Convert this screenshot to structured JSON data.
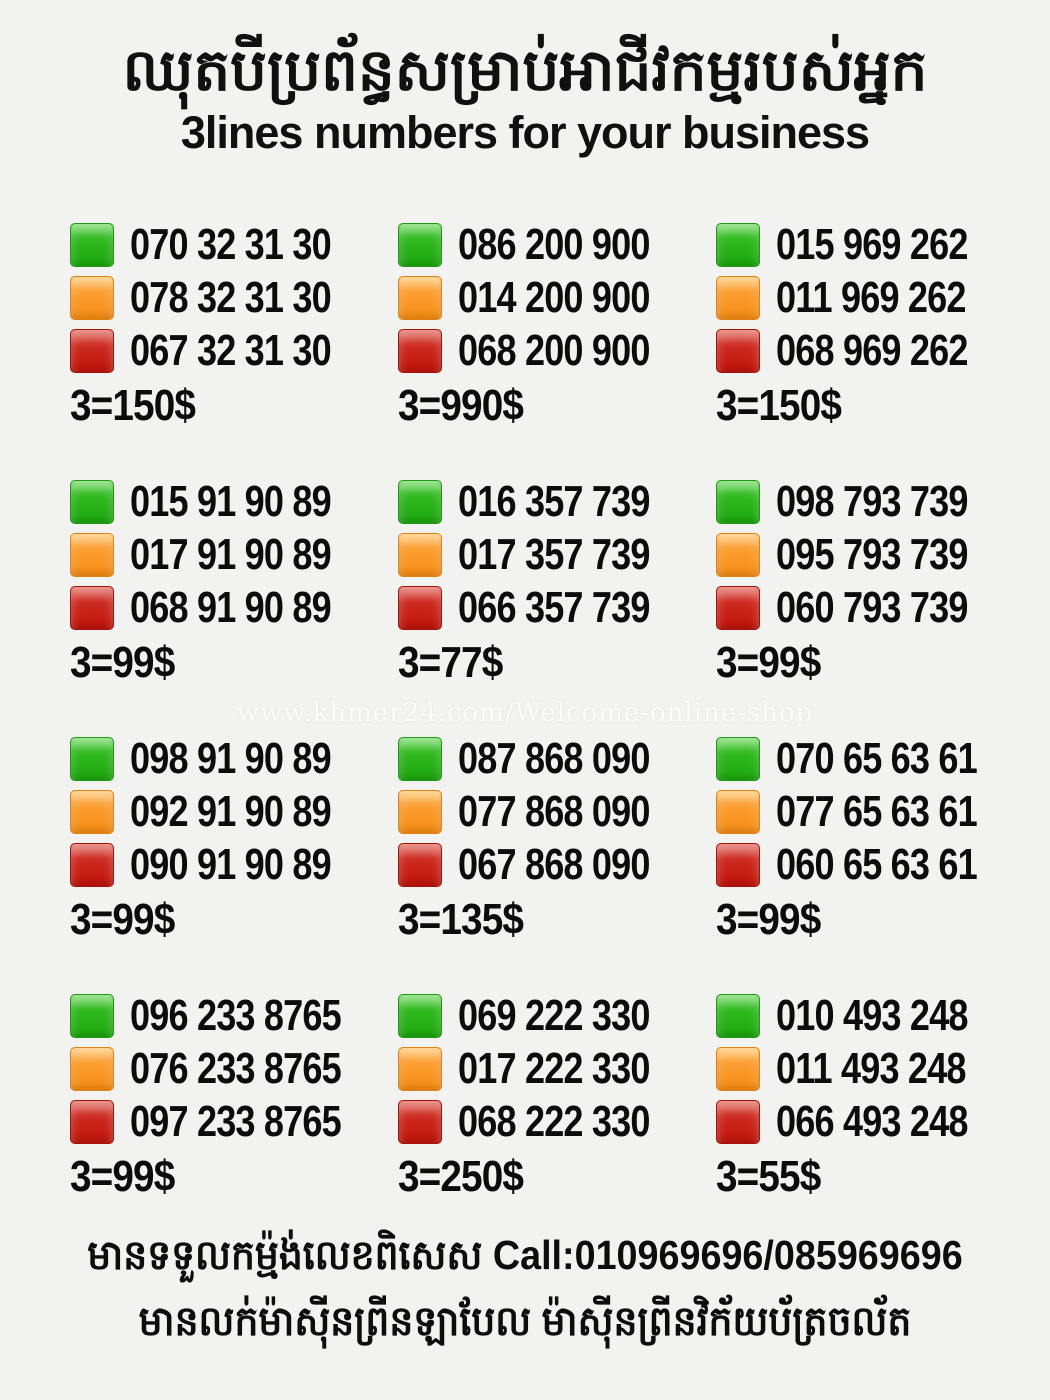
{
  "header": {
    "title_khmer": "ឈុតបីប្រព័ន្ធសម្រាប់អាជីវកម្មរបស់អ្នក",
    "title_english": "3lines numbers for your business"
  },
  "watermark": "www.khmer24.com/Welcome-online-shop",
  "colors": {
    "background": "#f2f2f0",
    "text": "#0e0e0e",
    "green": "#2cb51c",
    "orange": "#f78c12",
    "red": "#c8221a"
  },
  "groups": [
    {
      "price": "3=150$",
      "lines": [
        {
          "color": "green",
          "number": "070 32 31 30"
        },
        {
          "color": "orange",
          "number": "078 32 31 30"
        },
        {
          "color": "red",
          "number": "067 32 31 30"
        }
      ]
    },
    {
      "price": "3=990$",
      "lines": [
        {
          "color": "green",
          "number": "086 200 900"
        },
        {
          "color": "orange",
          "number": "014 200 900"
        },
        {
          "color": "red",
          "number": "068 200 900"
        }
      ]
    },
    {
      "price": "3=150$",
      "lines": [
        {
          "color": "green",
          "number": "015 969 262"
        },
        {
          "color": "orange",
          "number": "011 969 262"
        },
        {
          "color": "red",
          "number": "068 969 262"
        }
      ]
    },
    {
      "price": "3=99$",
      "lines": [
        {
          "color": "green",
          "number": "015 91 90 89"
        },
        {
          "color": "orange",
          "number": "017 91 90 89"
        },
        {
          "color": "red",
          "number": "068 91 90 89"
        }
      ]
    },
    {
      "price": "3=77$",
      "lines": [
        {
          "color": "green",
          "number": "016 357 739"
        },
        {
          "color": "orange",
          "number": "017 357 739"
        },
        {
          "color": "red",
          "number": "066 357 739"
        }
      ]
    },
    {
      "price": "3=99$",
      "lines": [
        {
          "color": "green",
          "number": "098 793 739"
        },
        {
          "color": "orange",
          "number": "095 793 739"
        },
        {
          "color": "red",
          "number": "060 793 739"
        }
      ]
    },
    {
      "price": "3=99$",
      "lines": [
        {
          "color": "green",
          "number": "098 91 90 89"
        },
        {
          "color": "orange",
          "number": "092 91 90 89"
        },
        {
          "color": "red",
          "number": "090 91 90 89"
        }
      ]
    },
    {
      "price": "3=135$",
      "lines": [
        {
          "color": "green",
          "number": "087 868 090"
        },
        {
          "color": "orange",
          "number": "077 868 090"
        },
        {
          "color": "red",
          "number": "067 868 090"
        }
      ]
    },
    {
      "price": "3=99$",
      "lines": [
        {
          "color": "green",
          "number": "070 65 63 61"
        },
        {
          "color": "orange",
          "number": "077 65 63 61"
        },
        {
          "color": "red",
          "number": "060 65 63 61"
        }
      ]
    },
    {
      "price": "3=99$",
      "lines": [
        {
          "color": "green",
          "number": "096 233 8765"
        },
        {
          "color": "orange",
          "number": "076 233 8765"
        },
        {
          "color": "red",
          "number": "097 233 8765"
        }
      ]
    },
    {
      "price": "3=250$",
      "lines": [
        {
          "color": "green",
          "number": "069 222 330"
        },
        {
          "color": "orange",
          "number": "017 222 330"
        },
        {
          "color": "red",
          "number": "068 222 330"
        }
      ]
    },
    {
      "price": "3=55$",
      "lines": [
        {
          "color": "green",
          "number": "010 493 248"
        },
        {
          "color": "orange",
          "number": "011 493 248"
        },
        {
          "color": "red",
          "number": "066 493 248"
        }
      ]
    }
  ],
  "footer": {
    "line1_khmer": "មានទទួលកម្ម៉ង់លេខពិសេស",
    "call": "Call:010969696/085969696",
    "line2_khmer": "មានលក់ម៉ាស៊ីនព្រីនឡាបែល ម៉ាស៊ីនព្រីនវិក័យប័ត្រចល័ត"
  }
}
